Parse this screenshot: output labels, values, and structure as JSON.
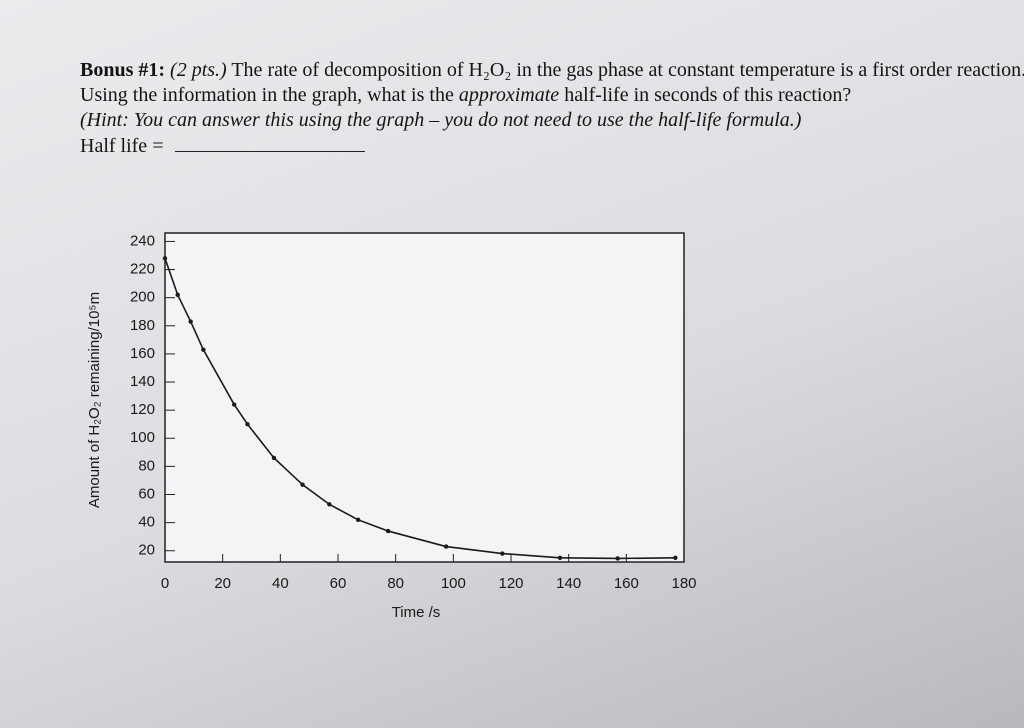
{
  "question": {
    "label": "Bonus #1:",
    "points": "(2 pts.)",
    "text_1": "The rate of decomposition of H₂O₂ in the gas phase at constant temperature is a first order reaction. Using the information in the graph, what is the",
    "emphasis": "approximate",
    "text_2": "half-life in seconds of this reaction?",
    "hint": "(Hint: You can answer this using the graph – you do not need to use the half-life formula.)",
    "answer_label": "Half life ="
  },
  "chart_data": {
    "type": "line",
    "x_label": "Time /s",
    "y_label": "Amount of H₂O₂ remaining/10⁵m",
    "x": [
      0,
      4.4,
      8.9,
      13.3,
      24,
      28.6,
      37.8,
      47.7,
      57,
      67,
      77.4,
      97.5,
      117,
      137,
      157,
      177
    ],
    "series": [
      {
        "color": "#1a1a1a",
        "values": [
          228,
          202,
          183,
          163,
          124,
          110,
          86,
          67,
          53,
          42,
          34,
          23,
          18,
          15,
          14.5,
          15
        ]
      }
    ],
    "xlim": [
      0,
      180
    ],
    "xticks": [
      0,
      20,
      40,
      60,
      80,
      100,
      120,
      140,
      160,
      180
    ],
    "ylim": [
      12,
      246
    ],
    "yticks": [
      20,
      40,
      60,
      80,
      100,
      120,
      140,
      160,
      180,
      200,
      220,
      240
    ]
  }
}
